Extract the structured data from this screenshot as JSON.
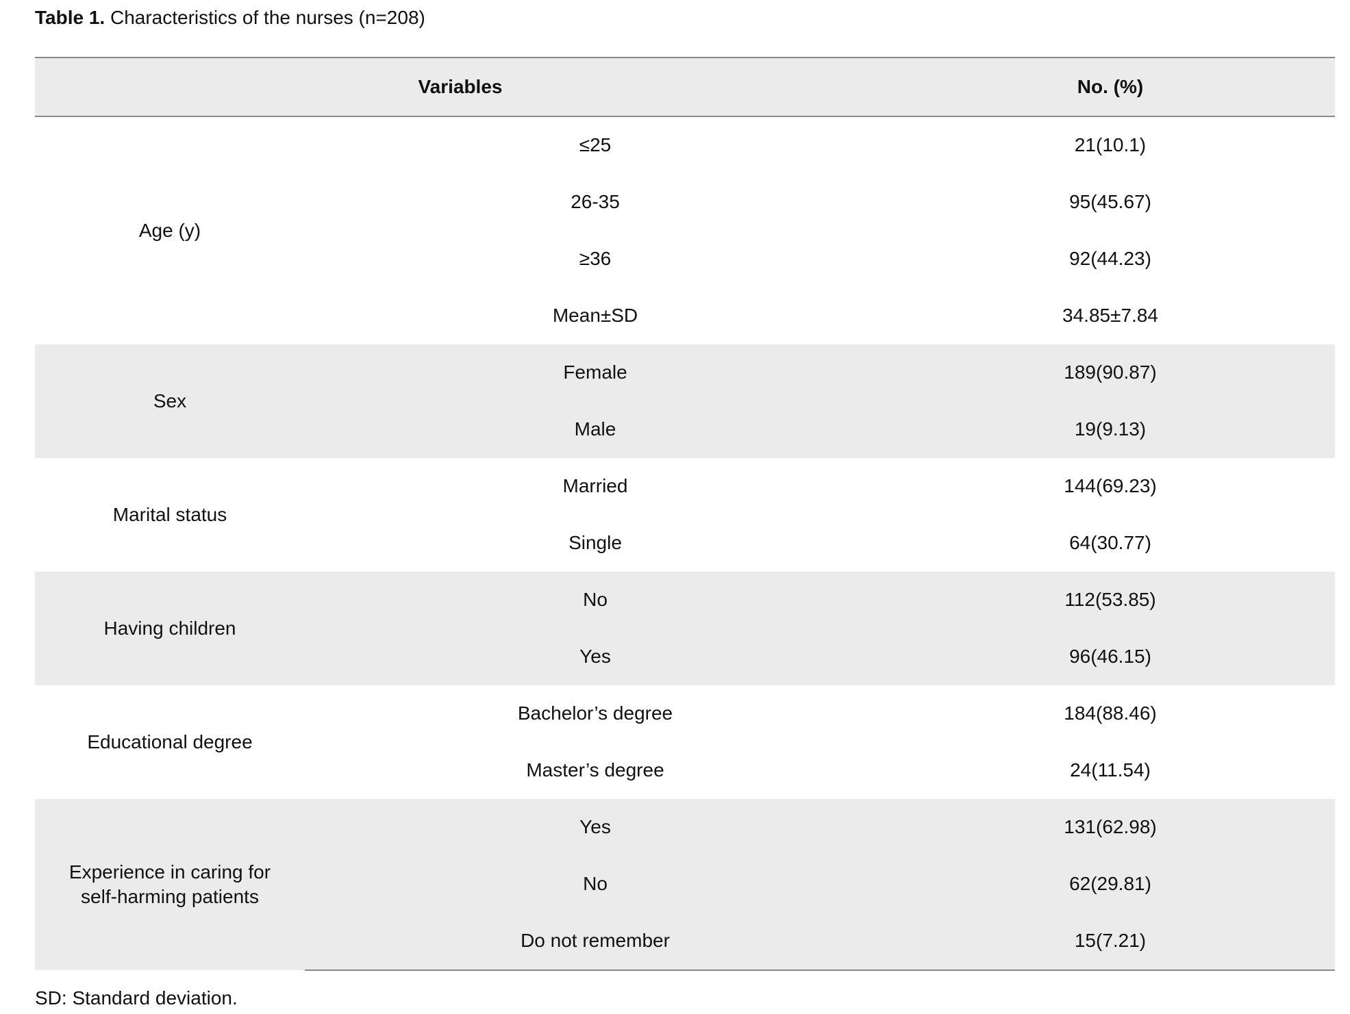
{
  "title": {
    "label": "Table 1.",
    "text": "Characteristics of the nurses (n=208)"
  },
  "header": {
    "variables": "Variables",
    "value": "No. (%)"
  },
  "groups": [
    {
      "name": "Age (y)",
      "shaded": false,
      "rows": [
        {
          "label": "≤25",
          "value": "21(10.1)"
        },
        {
          "label": "26-35",
          "value": "95(45.67)"
        },
        {
          "label": "≥36",
          "value": "92(44.23)"
        },
        {
          "label": "Mean±SD",
          "value": "34.85±7.84"
        }
      ]
    },
    {
      "name": "Sex",
      "shaded": true,
      "rows": [
        {
          "label": "Female",
          "value": "189(90.87)"
        },
        {
          "label": "Male",
          "value": "19(9.13)"
        }
      ]
    },
    {
      "name": "Marital status",
      "shaded": false,
      "rows": [
        {
          "label": "Married",
          "value": "144(69.23)"
        },
        {
          "label": "Single",
          "value": "64(30.77)"
        }
      ]
    },
    {
      "name": "Having children",
      "shaded": true,
      "rows": [
        {
          "label": "No",
          "value": "112(53.85)"
        },
        {
          "label": "Yes",
          "value": "96(46.15)"
        }
      ]
    },
    {
      "name": "Educational degree",
      "shaded": false,
      "rows": [
        {
          "label": "Bachelor’s degree",
          "value": "184(88.46)"
        },
        {
          "label": "Master’s degree",
          "value": "24(11.54)"
        }
      ]
    },
    {
      "name": "Experience in caring for self-harming patients",
      "shaded": true,
      "rows": [
        {
          "label": "Yes",
          "value": "131(62.98)"
        },
        {
          "label": "No",
          "value": "62(29.81)"
        },
        {
          "label": "Do not remember",
          "value": "15(7.21)"
        }
      ]
    }
  ],
  "footnote": "SD: Standard deviation."
}
